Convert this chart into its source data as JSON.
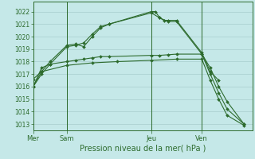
{
  "background_color": "#c5e8e8",
  "grid_color": "#a8cece",
  "line_color": "#2d6b2d",
  "marker_color": "#2d6b2d",
  "ylabel_values": [
    1013,
    1014,
    1015,
    1016,
    1017,
    1018,
    1019,
    1020,
    1021,
    1022
  ],
  "ylim": [
    1012.5,
    1022.8
  ],
  "xlabel": "Pression niveau de la mer( hPa )",
  "day_labels": [
    "Mer",
    "Sam",
    "Jeu",
    "Ven"
  ],
  "day_positions": [
    0,
    4,
    14,
    20
  ],
  "xlim": [
    0,
    26
  ],
  "series": [
    {
      "x": [
        0,
        1,
        2,
        4,
        5,
        6,
        7,
        8,
        9,
        14,
        14.5,
        15,
        15.5,
        16,
        17,
        20,
        21,
        22
      ],
      "y": [
        1016.6,
        1017.2,
        1018.0,
        1019.3,
        1019.4,
        1019.2,
        1020.0,
        1020.7,
        1021.0,
        1022.0,
        1022.0,
        1021.5,
        1021.3,
        1021.3,
        1021.3,
        1018.7,
        1017.2,
        1016.5
      ]
    },
    {
      "x": [
        0,
        1,
        2,
        4,
        5,
        6,
        7,
        8,
        9,
        14,
        15,
        16,
        17,
        20,
        21,
        22,
        23,
        25
      ],
      "y": [
        1016.0,
        1017.0,
        1017.8,
        1019.2,
        1019.3,
        1019.5,
        1020.2,
        1020.8,
        1021.0,
        1021.9,
        1021.5,
        1021.2,
        1021.2,
        1018.6,
        1017.5,
        1016.0,
        1014.8,
        1013.0
      ]
    },
    {
      "x": [
        0,
        1,
        2,
        4,
        5,
        6,
        7,
        8,
        9,
        14,
        15,
        16,
        17,
        20,
        21,
        22,
        23,
        25
      ],
      "y": [
        1016.0,
        1017.5,
        1017.8,
        1018.0,
        1018.1,
        1018.2,
        1018.3,
        1018.4,
        1018.4,
        1018.5,
        1018.5,
        1018.55,
        1018.6,
        1018.6,
        1017.0,
        1015.5,
        1014.2,
        1013.0
      ]
    },
    {
      "x": [
        0,
        1,
        4,
        7,
        10,
        14,
        17,
        20,
        21,
        22,
        23,
        25
      ],
      "y": [
        1016.0,
        1017.2,
        1017.7,
        1017.9,
        1018.0,
        1018.1,
        1018.2,
        1018.2,
        1016.5,
        1015.0,
        1013.7,
        1012.9
      ]
    }
  ]
}
